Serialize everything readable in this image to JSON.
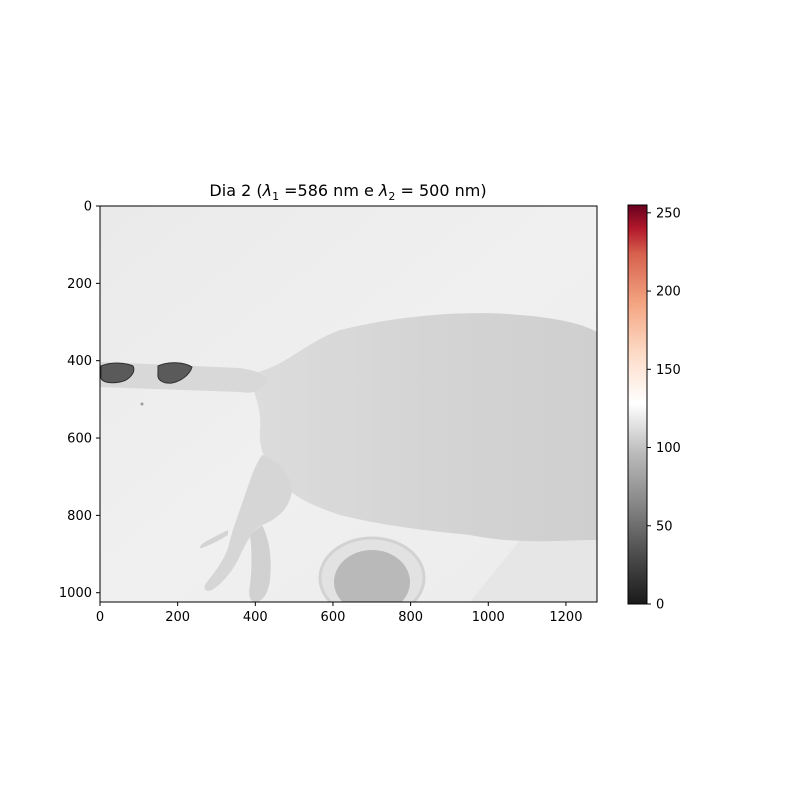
{
  "chart_data": {
    "type": "heatmap",
    "title": "Dia 2 (λ1 =586 nm e λ2 = 500 nm)",
    "title_parts": {
      "prefix": "Dia 2 (",
      "sym1": "λ",
      "sub1": "1",
      "mid": " =586 nm e ",
      "sym2": "λ",
      "sub2": "2",
      "suffix": " = 500 nm)"
    },
    "xlabel": "",
    "ylabel": "",
    "xlim": [
      0,
      1280
    ],
    "ylim": [
      1024,
      0
    ],
    "x_ticks": [
      0,
      200,
      400,
      600,
      800,
      1000,
      1200
    ],
    "y_ticks": [
      0,
      200,
      400,
      600,
      800,
      1000
    ],
    "colorbar": {
      "range": [
        0,
        255
      ],
      "ticks": [
        0,
        50,
        100,
        150,
        200,
        250
      ],
      "colormap": "RdGy_r",
      "stops": [
        {
          "v": 0,
          "color": "#1a1a1a"
        },
        {
          "v": 32,
          "color": "#4d4d4d"
        },
        {
          "v": 64,
          "color": "#878787"
        },
        {
          "v": 96,
          "color": "#bababa"
        },
        {
          "v": 128,
          "color": "#ffffff"
        },
        {
          "v": 160,
          "color": "#fddbc7"
        },
        {
          "v": 192,
          "color": "#f4a582"
        },
        {
          "v": 224,
          "color": "#d6604d"
        },
        {
          "v": 240,
          "color": "#b2182b"
        },
        {
          "v": 255,
          "color": "#67001f"
        }
      ]
    },
    "image_content": {
      "background_level": 118,
      "body_level": 100,
      "tail_marks_level": 40
    }
  }
}
